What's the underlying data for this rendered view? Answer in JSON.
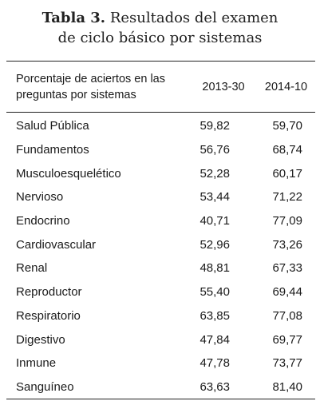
{
  "caption": {
    "label": "Tabla 3.",
    "line1_rest": "Resultados del examen",
    "line2": "de ciclo básico por sistemas"
  },
  "table": {
    "header": {
      "label_line1": "Porcentaje de aciertos en las",
      "label_line2": "preguntas por sistemas",
      "col1": "2013-30",
      "col2": "2014-10"
    },
    "rows": [
      {
        "label": "Salud Pública",
        "v1": "59,82",
        "v2": "59,70"
      },
      {
        "label": "Fundamentos",
        "v1": "56,76",
        "v2": "68,74"
      },
      {
        "label": "Musculoesquelético",
        "v1": "52,28",
        "v2": "60,17"
      },
      {
        "label": "Nervioso",
        "v1": "53,44",
        "v2": "71,22"
      },
      {
        "label": "Endocrino",
        "v1": "40,71",
        "v2": "77,09"
      },
      {
        "label": "Cardiovascular",
        "v1": "52,96",
        "v2": "73,26"
      },
      {
        "label": "Renal",
        "v1": "48,81",
        "v2": "67,33"
      },
      {
        "label": "Reproductor",
        "v1": "55,40",
        "v2": "69,44"
      },
      {
        "label": "Respiratorio",
        "v1": "63,85",
        "v2": "77,08"
      },
      {
        "label": "Digestivo",
        "v1": "47,84",
        "v2": "69,77"
      },
      {
        "label": "Inmune",
        "v1": "47,78",
        "v2": "73,77"
      },
      {
        "label": "Sanguíneo",
        "v1": "63,63",
        "v2": "81,40"
      }
    ]
  }
}
